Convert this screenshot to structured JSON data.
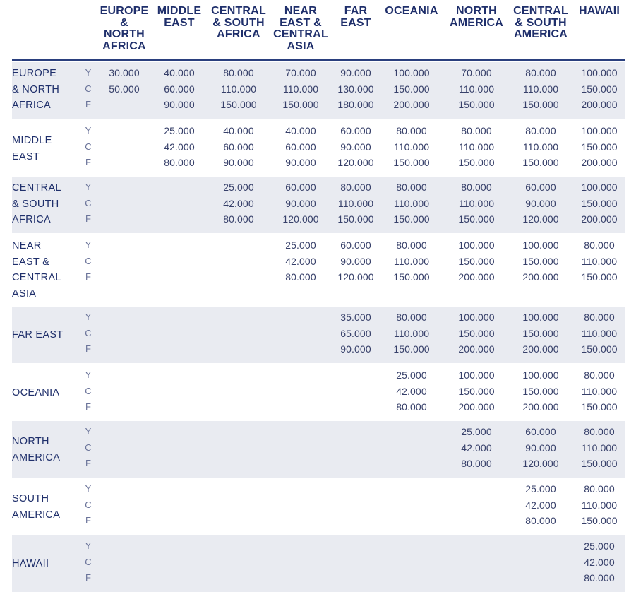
{
  "columns": [
    [
      "EUROPE",
      "&",
      "NORTH",
      "AFRICA"
    ],
    [
      "MIDDLE",
      "EAST"
    ],
    [
      "CENTRAL",
      "& SOUTH",
      "AFRICA"
    ],
    [
      "NEAR",
      "EAST &",
      "CENTRAL",
      "ASIA"
    ],
    [
      "FAR",
      "EAST"
    ],
    [
      "OCEANIA"
    ],
    [
      "NORTH",
      "AMERICA"
    ],
    [
      "CENTRAL",
      "& SOUTH",
      "AMERICA"
    ],
    [
      "HAWAII"
    ]
  ],
  "classes": [
    "Y",
    "C",
    "F"
  ],
  "rows": [
    {
      "label": [
        "EUROPE",
        "& NORTH",
        "AFRICA"
      ],
      "values": [
        [
          "30.000",
          "40.000",
          "80.000",
          "70.000",
          "90.000",
          "100.000",
          "70.000",
          "80.000",
          "100.000"
        ],
        [
          "50.000",
          "60.000",
          "110.000",
          "110.000",
          "130.000",
          "150.000",
          "110.000",
          "110.000",
          "150.000"
        ],
        [
          "",
          "90.000",
          "150.000",
          "150.000",
          "180.000",
          "200.000",
          "150.000",
          "150.000",
          "200.000"
        ]
      ]
    },
    {
      "label": [
        "MIDDLE",
        "EAST"
      ],
      "values": [
        [
          "",
          "25.000",
          "40.000",
          "40.000",
          "60.000",
          "80.000",
          "80.000",
          "80.000",
          "100.000"
        ],
        [
          "",
          "42.000",
          "60.000",
          "60.000",
          "90.000",
          "110.000",
          "110.000",
          "110.000",
          "150.000"
        ],
        [
          "",
          "80.000",
          "90.000",
          "90.000",
          "120.000",
          "150.000",
          "150.000",
          "150.000",
          "200.000"
        ]
      ]
    },
    {
      "label": [
        "CENTRAL",
        "& SOUTH",
        "AFRICA"
      ],
      "values": [
        [
          "",
          "",
          "25.000",
          "60.000",
          "80.000",
          "80.000",
          "80.000",
          "60.000",
          "100.000"
        ],
        [
          "",
          "",
          "42.000",
          "90.000",
          "110.000",
          "110.000",
          "110.000",
          "90.000",
          "150.000"
        ],
        [
          "",
          "",
          "80.000",
          "120.000",
          "150.000",
          "150.000",
          "150.000",
          "120.000",
          "200.000"
        ]
      ]
    },
    {
      "label": [
        "NEAR",
        "EAST &",
        "CENTRAL",
        "ASIA"
      ],
      "values": [
        [
          "",
          "",
          "",
          "25.000",
          "60.000",
          "80.000",
          "100.000",
          "100.000",
          "80.000"
        ],
        [
          "",
          "",
          "",
          "42.000",
          "90.000",
          "110.000",
          "150.000",
          "150.000",
          "110.000"
        ],
        [
          "",
          "",
          "",
          "80.000",
          "120.000",
          "150.000",
          "200.000",
          "200.000",
          "150.000"
        ]
      ]
    },
    {
      "label": [
        "FAR EAST"
      ],
      "values": [
        [
          "",
          "",
          "",
          "",
          "35.000",
          "80.000",
          "100.000",
          "100.000",
          "80.000"
        ],
        [
          "",
          "",
          "",
          "",
          "65.000",
          "110.000",
          "150.000",
          "150.000",
          "110.000"
        ],
        [
          "",
          "",
          "",
          "",
          "90.000",
          "150.000",
          "200.000",
          "200.000",
          "150.000"
        ]
      ]
    },
    {
      "label": [
        "OCEANIA"
      ],
      "values": [
        [
          "",
          "",
          "",
          "",
          "",
          "25.000",
          "100.000",
          "100.000",
          "80.000"
        ],
        [
          "",
          "",
          "",
          "",
          "",
          "42.000",
          "150.000",
          "150.000",
          "110.000"
        ],
        [
          "",
          "",
          "",
          "",
          "",
          "80.000",
          "200.000",
          "200.000",
          "150.000"
        ]
      ]
    },
    {
      "label": [
        "NORTH",
        "AMERICA"
      ],
      "values": [
        [
          "",
          "",
          "",
          "",
          "",
          "",
          "25.000",
          "60.000",
          "80.000"
        ],
        [
          "",
          "",
          "",
          "",
          "",
          "",
          "42.000",
          "90.000",
          "110.000"
        ],
        [
          "",
          "",
          "",
          "",
          "",
          "",
          "80.000",
          "120.000",
          "150.000"
        ]
      ]
    },
    {
      "label": [
        "SOUTH",
        "AMERICA"
      ],
      "values": [
        [
          "",
          "",
          "",
          "",
          "",
          "",
          "",
          "25.000",
          "80.000"
        ],
        [
          "",
          "",
          "",
          "",
          "",
          "",
          "",
          "42.000",
          "110.000"
        ],
        [
          "",
          "",
          "",
          "",
          "",
          "",
          "",
          "80.000",
          "150.000"
        ]
      ]
    },
    {
      "label": [
        "HAWAII"
      ],
      "values": [
        [
          "",
          "",
          "",
          "",
          "",
          "",
          "",
          "",
          "25.000"
        ],
        [
          "",
          "",
          "",
          "",
          "",
          "",
          "",
          "",
          "42.000"
        ],
        [
          "",
          "",
          "",
          "",
          "",
          "",
          "",
          "",
          "80.000"
        ]
      ]
    }
  ]
}
